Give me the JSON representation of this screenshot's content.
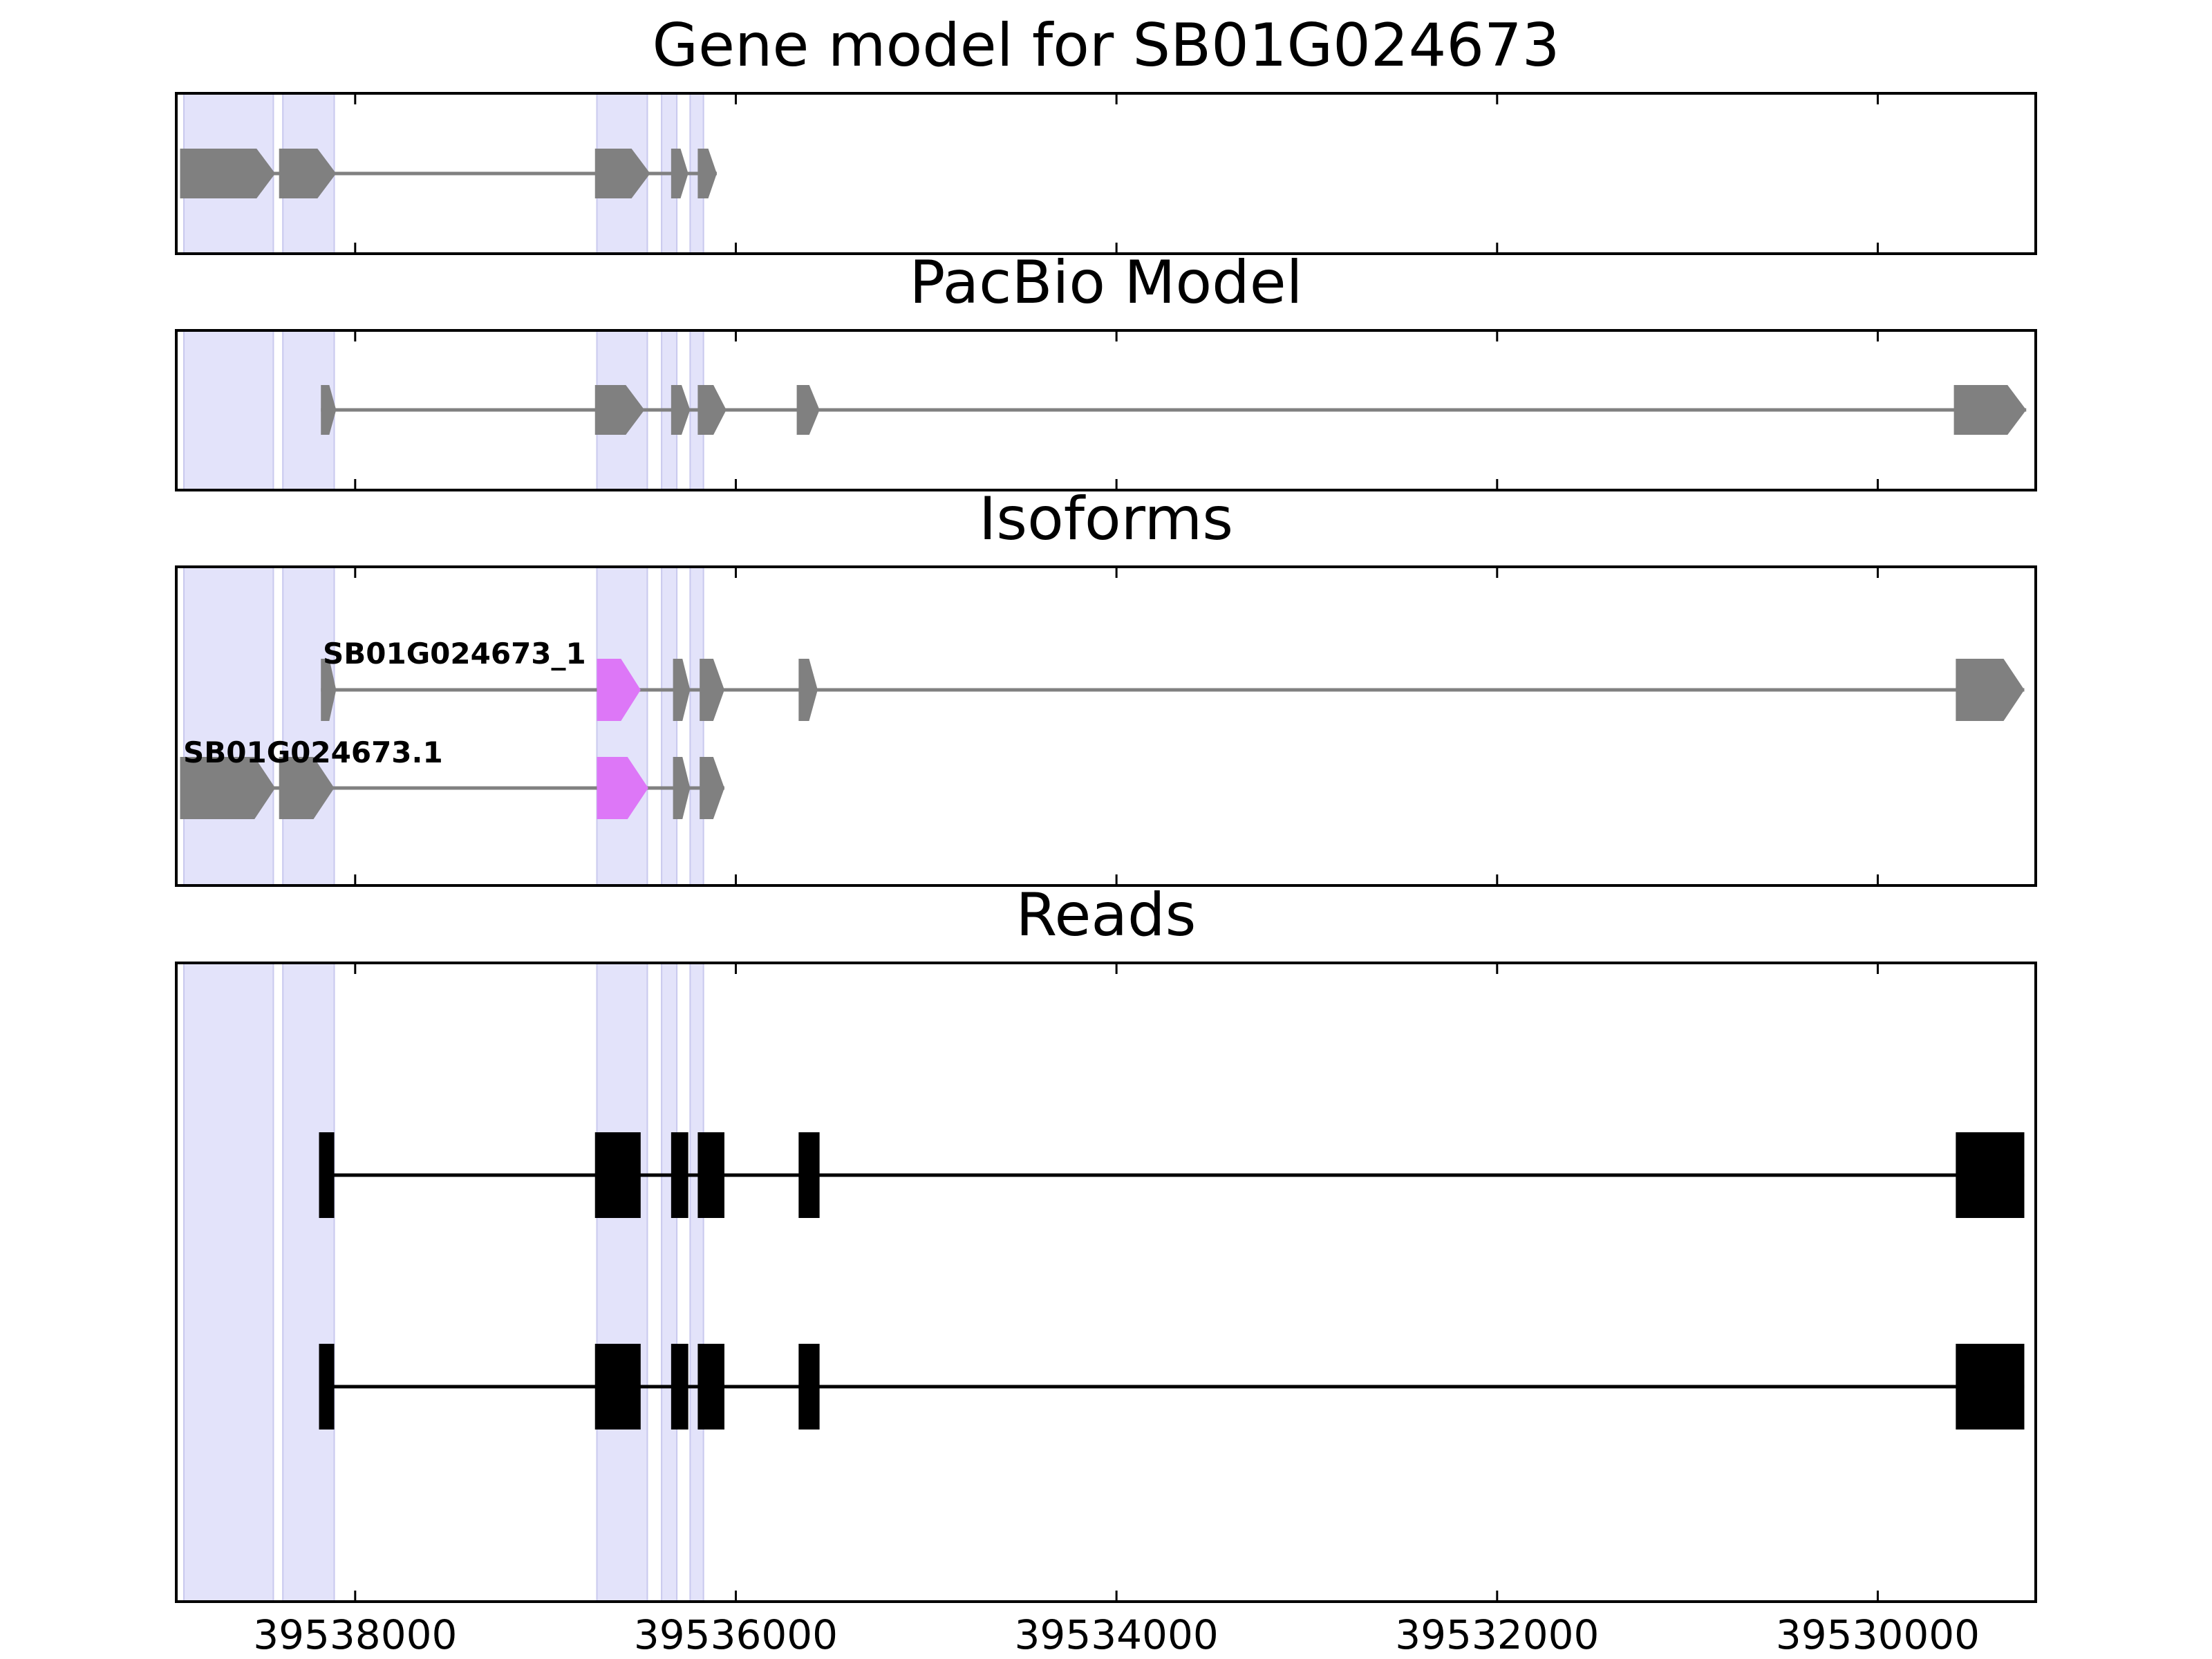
{
  "chart_data": {
    "type": "gene-structure",
    "xlim": [
      39538940,
      39529170
    ],
    "x_reversed": true,
    "x_ticks": [
      39538000,
      39536000,
      39534000,
      39532000,
      39530000
    ],
    "x_tick_labels": [
      "39538000",
      "39536000",
      "39534000",
      "39532000",
      "39530000"
    ],
    "highlight_color": "#e3e3fa",
    "highlight_regions": [
      [
        38900,
        38430
      ],
      [
        38380,
        38110
      ],
      [
        36730,
        36465
      ],
      [
        36390,
        36310
      ],
      [
        36240,
        36170
      ]
    ],
    "panels": [
      {
        "title": "Gene model for SB01G024673",
        "tracks": [
          {
            "label": "",
            "color": "#808080",
            "intron_color": "#808080",
            "shape": "arrow",
            "exons": [
              [
                38920,
                38420
              ],
              [
                38400,
                38100
              ],
              [
                36740,
                36450
              ],
              [
                36340,
                36250
              ],
              [
                36200,
                36100
              ]
            ],
            "span": [
              38920,
              36100
            ]
          }
        ]
      },
      {
        "title": "PacBio Model",
        "tracks": [
          {
            "label": "",
            "color": "#808080",
            "intron_color": "#808080",
            "shape": "arrow",
            "exons": [
              [
                38180,
                38100
              ],
              [
                36740,
                36480
              ],
              [
                36340,
                36240
              ],
              [
                36200,
                36050
              ],
              [
                35680,
                35560
              ],
              [
                29600,
                29220
              ]
            ],
            "span": [
              38180,
              29220
            ]
          }
        ]
      },
      {
        "title": "Isoforms",
        "tracks": [
          {
            "label": "SB01G024673_1",
            "color": "#808080",
            "intron_color": "#808080",
            "shape": "arrow",
            "exons": [
              [
                38180,
                38100
              ],
              [
                36730,
                36500
              ],
              [
                36330,
                36240
              ],
              [
                36190,
                36060
              ],
              [
                35670,
                35570
              ],
              [
                29590,
                29230
              ]
            ],
            "highlight_exon_index": 1,
            "highlight_color": "#dd77f7",
            "span": [
              38180,
              29230
            ]
          },
          {
            "label": "SB01G024673.1",
            "color": "#808080",
            "intron_color": "#808080",
            "shape": "arrow",
            "exons": [
              [
                38920,
                38420
              ],
              [
                38400,
                38110
              ],
              [
                36730,
                36460
              ],
              [
                36330,
                36240
              ],
              [
                36190,
                36060
              ]
            ],
            "highlight_exon_index": 2,
            "highlight_color": "#dd77f7",
            "span": [
              38920,
              36060
            ]
          }
        ]
      },
      {
        "title": "Reads",
        "tracks": [
          {
            "label": "",
            "color": "#000000",
            "intron_color": "#000000",
            "shape": "box",
            "exons": [
              [
                38190,
                38110
              ],
              [
                36740,
                36500
              ],
              [
                36340,
                36250
              ],
              [
                36200,
                36060
              ],
              [
                35670,
                35560
              ],
              [
                29590,
                29230
              ]
            ],
            "span": [
              38190,
              29230
            ]
          },
          {
            "label": "",
            "color": "#000000",
            "intron_color": "#000000",
            "shape": "box",
            "exons": [
              [
                38190,
                38110
              ],
              [
                36740,
                36500
              ],
              [
                36340,
                36250
              ],
              [
                36200,
                36060
              ],
              [
                35670,
                35560
              ],
              [
                29590,
                29230
              ]
            ],
            "span": [
              38190,
              29230
            ]
          }
        ]
      }
    ]
  }
}
